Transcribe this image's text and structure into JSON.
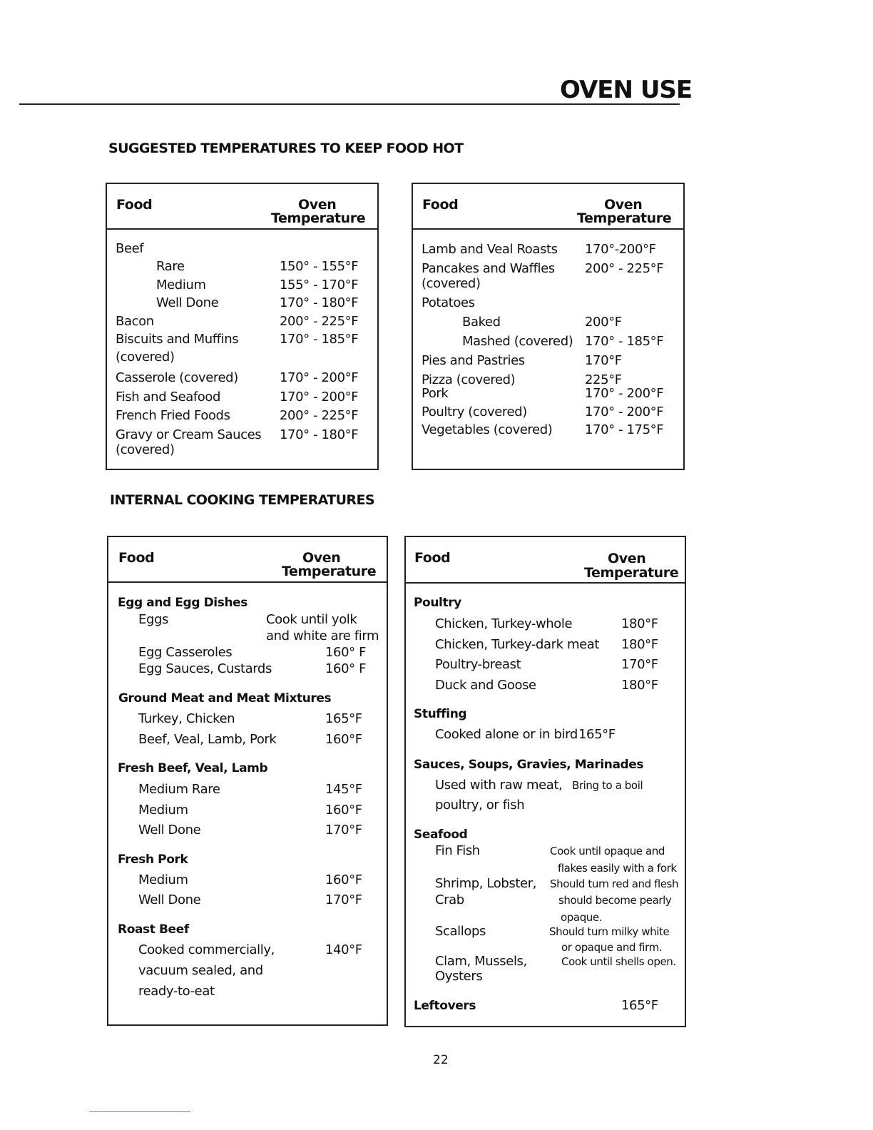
{
  "page_title": "OVEN USE",
  "page_number": "22",
  "sections": {
    "keep_hot": "SUGGESTED TEMPERATURES TO KEEP FOOD HOT",
    "internal": "INTERNAL COOKING TEMPERATURES"
  },
  "header": {
    "food": "Food",
    "oven": "Oven",
    "temperature": "Temperature"
  },
  "tables": [
    {
      "rows": [
        {
          "food": "Beef",
          "temp": ""
        },
        {
          "food": "Rare",
          "temp": "150° - 155°F"
        },
        {
          "food": "Medium",
          "temp": "155° - 170°F"
        },
        {
          "food": "Well Done",
          "temp": "170° - 180°F"
        },
        {
          "food": "Bacon",
          "temp": "200° - 225°F"
        },
        {
          "food": "Biscuits and Muffins",
          "temp": "170° - 185°F"
        },
        {
          "food": "(covered)",
          "temp": ""
        },
        {
          "food": "Casserole (covered)",
          "temp": "170° - 200°F"
        },
        {
          "food": "Fish and Seafood",
          "temp": "170° - 200°F"
        },
        {
          "food": "French Fried Foods",
          "temp": "200° - 225°F"
        },
        {
          "food": "Gravy or Cream Sauces",
          "temp": "170° - 180°F"
        },
        {
          "food": "(covered)",
          "temp": ""
        }
      ]
    },
    {
      "rows": [
        {
          "food": "Lamb and Veal Roasts",
          "temp": "170°-200°F"
        },
        {
          "food": "Pancakes and Waffles",
          "temp": "200° - 225°F"
        },
        {
          "food": "(covered)",
          "temp": ""
        },
        {
          "food": "Potatoes",
          "temp": ""
        },
        {
          "food": "Baked",
          "temp": "200°F"
        },
        {
          "food": "Mashed (covered)",
          "temp": "170° - 185°F"
        },
        {
          "food": "Pies and Pastries",
          "temp": "170°F"
        },
        {
          "food": "Pizza (covered)",
          "temp": "225°F"
        },
        {
          "food": "Pork",
          "temp": "170° - 200°F"
        },
        {
          "food": "Poultry (covered)",
          "temp": "170° - 200°F"
        },
        {
          "food": "Vegetables (covered)",
          "temp": "170° - 175°F"
        }
      ]
    },
    {
      "rows": [
        {
          "food": "Egg and Egg Dishes",
          "temp": "",
          "bold": true
        },
        {
          "food": "Eggs",
          "temp": "Cook until yolk"
        },
        {
          "food": "",
          "temp": "and white are firm"
        },
        {
          "food": "Egg Casseroles",
          "temp": "160° F"
        },
        {
          "food": "Egg Sauces, Custards",
          "temp": "160° F"
        },
        {
          "food": "Ground Meat and Meat Mixtures",
          "temp": "",
          "bold": true
        },
        {
          "food": "Turkey, Chicken",
          "temp": "165°F"
        },
        {
          "food": "Beef, Veal, Lamb, Pork",
          "temp": "160°F"
        },
        {
          "food": "Fresh Beef, Veal, Lamb",
          "temp": "",
          "bold": true
        },
        {
          "food": "Medium Rare",
          "temp": "145°F"
        },
        {
          "food": "Medium",
          "temp": "160°F"
        },
        {
          "food": "Well Done",
          "temp": "170°F"
        },
        {
          "food": "Fresh Pork",
          "temp": "",
          "bold": true
        },
        {
          "food": "Medium",
          "temp": "160°F"
        },
        {
          "food": "Well Done",
          "temp": "170°F"
        },
        {
          "food": "Roast Beef",
          "temp": "",
          "bold": true
        },
        {
          "food": "Cooked commercially,",
          "temp": "140°F"
        },
        {
          "food": "vacuum sealed, and",
          "temp": ""
        },
        {
          "food": "ready-to-eat",
          "temp": ""
        }
      ]
    },
    {
      "rows": [
        {
          "food": "Poultry",
          "temp": "",
          "bold": true
        },
        {
          "food": "Chicken, Turkey-whole",
          "temp": "180°F"
        },
        {
          "food": "Chicken, Turkey-dark meat",
          "temp": "180°F"
        },
        {
          "food": "Poultry-breast",
          "temp": "170°F"
        },
        {
          "food": "Duck and Goose",
          "temp": "180°F"
        },
        {
          "food": "Stuffing",
          "temp": "",
          "bold": true
        },
        {
          "food": "Cooked alone or in bird",
          "temp": "165°F"
        },
        {
          "food": "Sauces, Soups, Gravies, Marinades",
          "temp": "",
          "bold": true
        },
        {
          "food": "Used with raw meat,",
          "temp": "Bring to a boil"
        },
        {
          "food": "poultry, or fish",
          "temp": ""
        },
        {
          "food": "Seafood",
          "temp": "",
          "bold": true
        },
        {
          "food": "Fin Fish",
          "temp": "Cook until opaque and"
        },
        {
          "food": "",
          "temp": "flakes easily with a fork"
        },
        {
          "food": "Shrimp, Lobster,",
          "temp": "Should turn red and flesh"
        },
        {
          "food": "Crab",
          "temp": "should become pearly"
        },
        {
          "food": "",
          "temp": "opaque."
        },
        {
          "food": "Scallops",
          "temp": "Should turn milky white"
        },
        {
          "food": "",
          "temp": "or opaque and firm."
        },
        {
          "food": "Clam, Mussels,",
          "temp": "Cook until shells open."
        },
        {
          "food": "Oysters",
          "temp": ""
        },
        {
          "food": "Leftovers",
          "temp": "165°F",
          "bold": true
        }
      ]
    }
  ]
}
